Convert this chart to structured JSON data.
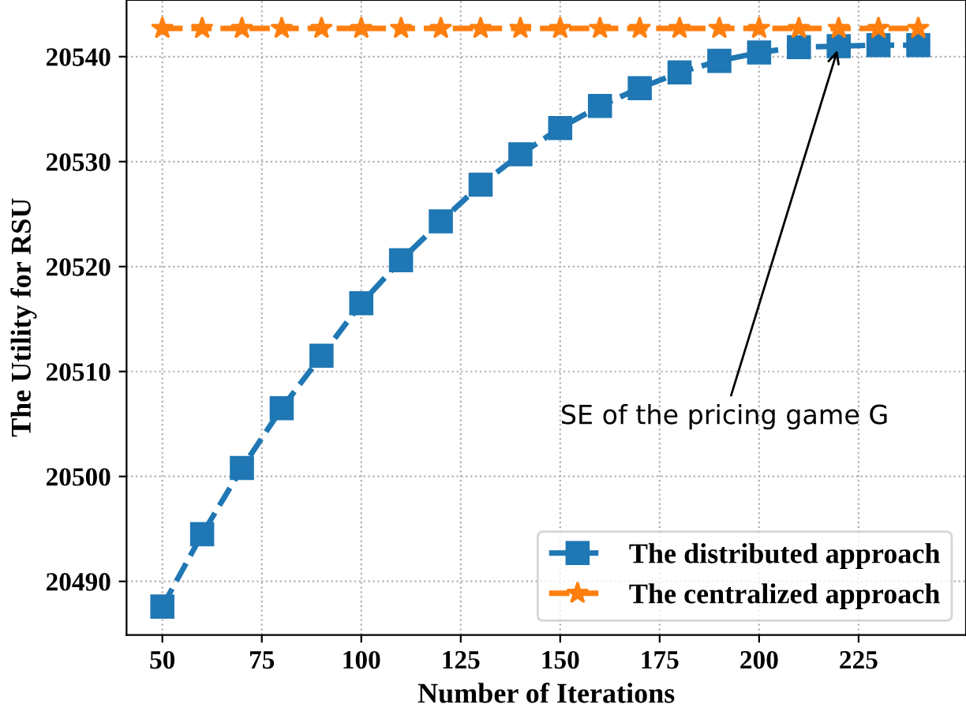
{
  "chart_data": {
    "type": "line",
    "xlabel": "Number of Iterations",
    "ylabel": "The Utility for RSU",
    "x": [
      50,
      60,
      70,
      80,
      90,
      100,
      110,
      120,
      130,
      140,
      150,
      160,
      170,
      180,
      190,
      200,
      210,
      220,
      230,
      240
    ],
    "series": [
      {
        "name": "The distributed approach",
        "color": "#1f77b4",
        "marker": "square",
        "values": [
          20487.6,
          20494.5,
          20500.8,
          20506.5,
          20511.5,
          20516.5,
          20520.6,
          20524.3,
          20527.8,
          20530.7,
          20533.2,
          20535.3,
          20537.0,
          20538.5,
          20539.6,
          20540.4,
          20540.9,
          20541.0,
          20541.1,
          20541.1
        ]
      },
      {
        "name": "The centralized approach",
        "color": "#ff7f0e",
        "marker": "star",
        "values": [
          20542.7,
          20542.7,
          20542.7,
          20542.7,
          20542.7,
          20542.7,
          20542.7,
          20542.7,
          20542.7,
          20542.7,
          20542.7,
          20542.7,
          20542.7,
          20542.7,
          20542.7,
          20542.7,
          20542.7,
          20542.7,
          20542.7,
          20542.7
        ]
      }
    ],
    "xlim": [
      41,
      252
    ],
    "ylim": [
      20484.9,
      20545.4
    ],
    "xticks": [
      50,
      75,
      100,
      125,
      150,
      175,
      200,
      225
    ],
    "yticks": [
      20490,
      20500,
      20510,
      20520,
      20530,
      20540
    ],
    "line_style": "dashed",
    "grid": true,
    "legend": "bottom right",
    "annotations": [
      {
        "text": "SE of the pricing game G",
        "x": 220,
        "y": 20541.0
      }
    ]
  }
}
